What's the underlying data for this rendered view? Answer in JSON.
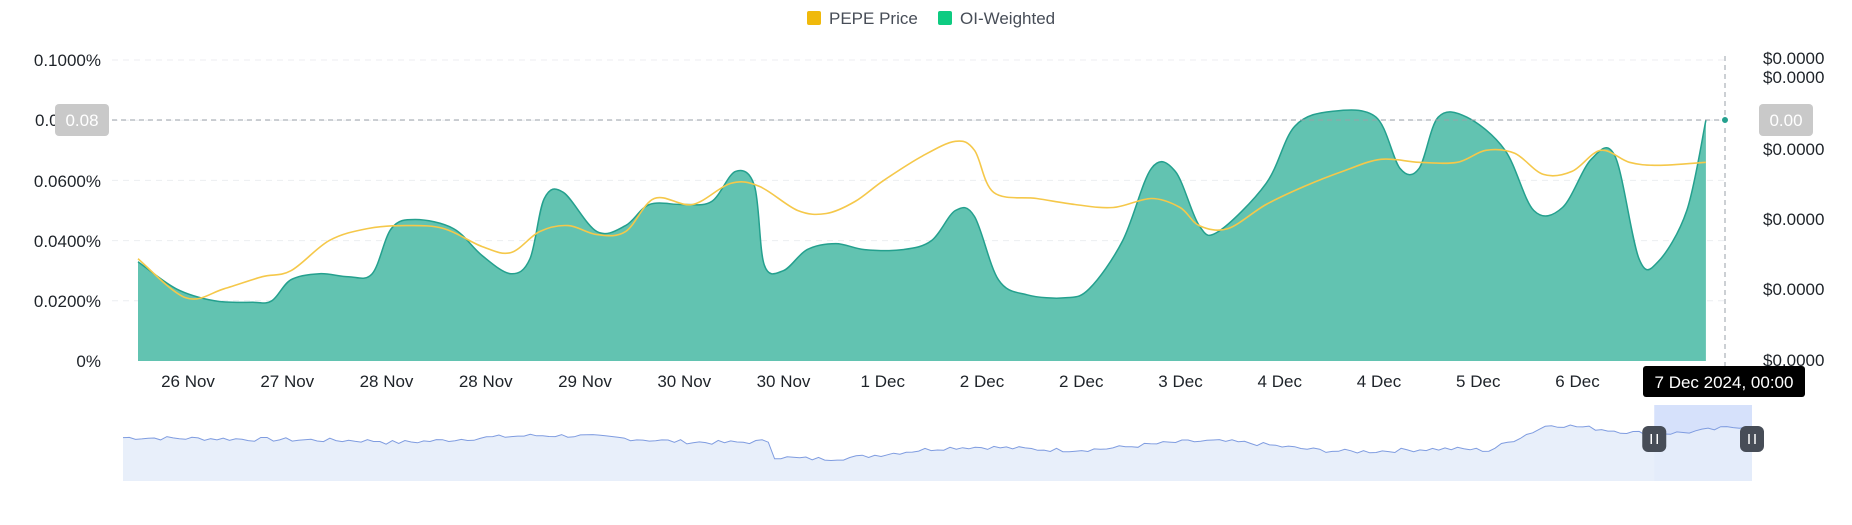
{
  "chart_data": {
    "type": "area",
    "legend": {
      "position": "top-center",
      "items": [
        {
          "label": "PEPE Price",
          "color": "#f0b90b"
        },
        {
          "label": "OI-Weighted",
          "color": "#0ecb81"
        }
      ]
    },
    "x_tick_labels": [
      "26 Nov",
      "27 Nov",
      "28 Nov",
      "28 Nov",
      "29 Nov",
      "30 Nov",
      "30 Nov",
      "1 Dec",
      "2 Dec",
      "2 Dec",
      "3 Dec",
      "4 Dec",
      "4 Dec",
      "5 Dec",
      "6 Dec"
    ],
    "y_left": {
      "ticks": [
        "0.1000%",
        "0.0600%",
        "0.0400%",
        "0.0200%",
        "0%"
      ],
      "range": [
        0,
        0.1
      ]
    },
    "y_right": {
      "ticks": [
        "$0.0000",
        "$0.0000",
        "$0.0000",
        "$0.0000",
        "$0.0000",
        "$0.0000"
      ]
    },
    "grid": true,
    "x_range": [
      0,
      16.6
    ],
    "series": [
      {
        "name": "OI-Weighted",
        "kind": "area",
        "color": "#0ecb81",
        "fill": "#62c3b1",
        "stroke": "#24a08e",
        "points": [
          [
            0,
            0.033
          ],
          [
            0.4,
            0.024
          ],
          [
            0.8,
            0.02
          ],
          [
            1.2,
            0.0195
          ],
          [
            1.4,
            0.02
          ],
          [
            1.6,
            0.027
          ],
          [
            1.9,
            0.029
          ],
          [
            2.2,
            0.028
          ],
          [
            2.45,
            0.029
          ],
          [
            2.65,
            0.044
          ],
          [
            2.9,
            0.047
          ],
          [
            3.3,
            0.044
          ],
          [
            3.6,
            0.035
          ],
          [
            3.9,
            0.029
          ],
          [
            4.1,
            0.034
          ],
          [
            4.25,
            0.054
          ],
          [
            4.45,
            0.056
          ],
          [
            4.8,
            0.043
          ],
          [
            5.1,
            0.045
          ],
          [
            5.35,
            0.052
          ],
          [
            5.7,
            0.052
          ],
          [
            6.0,
            0.053
          ],
          [
            6.25,
            0.063
          ],
          [
            6.45,
            0.058
          ],
          [
            6.55,
            0.032
          ],
          [
            6.75,
            0.03
          ],
          [
            7.0,
            0.037
          ],
          [
            7.3,
            0.039
          ],
          [
            7.6,
            0.037
          ],
          [
            8.0,
            0.037
          ],
          [
            8.3,
            0.04
          ],
          [
            8.55,
            0.05
          ],
          [
            8.75,
            0.048
          ],
          [
            9.0,
            0.027
          ],
          [
            9.3,
            0.022
          ],
          [
            9.7,
            0.021
          ],
          [
            9.95,
            0.024
          ],
          [
            10.3,
            0.04
          ],
          [
            10.6,
            0.064
          ],
          [
            10.85,
            0.063
          ],
          [
            11.1,
            0.045
          ],
          [
            11.3,
            0.043
          ],
          [
            11.8,
            0.059
          ],
          [
            12.1,
            0.078
          ],
          [
            12.5,
            0.083
          ],
          [
            12.95,
            0.081
          ],
          [
            13.2,
            0.064
          ],
          [
            13.4,
            0.064
          ],
          [
            13.6,
            0.081
          ],
          [
            13.9,
            0.081
          ],
          [
            14.3,
            0.07
          ],
          [
            14.6,
            0.05
          ],
          [
            14.9,
            0.051
          ],
          [
            15.2,
            0.067
          ],
          [
            15.45,
            0.068
          ],
          [
            15.7,
            0.034
          ],
          [
            15.9,
            0.033
          ],
          [
            16.2,
            0.05
          ],
          [
            16.4,
            0.08
          ]
        ]
      },
      {
        "name": "PEPE Price",
        "kind": "line",
        "color": "#f5c84a",
        "points": [
          [
            0,
            0.034
          ],
          [
            0.5,
            0.021
          ],
          [
            0.9,
            0.024
          ],
          [
            1.3,
            0.028
          ],
          [
            1.6,
            0.03
          ],
          [
            2.0,
            0.04
          ],
          [
            2.4,
            0.044
          ],
          [
            2.8,
            0.045
          ],
          [
            3.2,
            0.044
          ],
          [
            3.6,
            0.038
          ],
          [
            3.9,
            0.036
          ],
          [
            4.2,
            0.043
          ],
          [
            4.5,
            0.045
          ],
          [
            4.8,
            0.042
          ],
          [
            5.1,
            0.043
          ],
          [
            5.4,
            0.054
          ],
          [
            5.8,
            0.052
          ],
          [
            6.2,
            0.059
          ],
          [
            6.5,
            0.058
          ],
          [
            6.9,
            0.05
          ],
          [
            7.2,
            0.049
          ],
          [
            7.5,
            0.053
          ],
          [
            7.8,
            0.06
          ],
          [
            8.2,
            0.068
          ],
          [
            8.55,
            0.073
          ],
          [
            8.75,
            0.07
          ],
          [
            8.95,
            0.056
          ],
          [
            9.4,
            0.054
          ],
          [
            9.8,
            0.052
          ],
          [
            10.2,
            0.051
          ],
          [
            10.6,
            0.054
          ],
          [
            10.9,
            0.051
          ],
          [
            11.1,
            0.045
          ],
          [
            11.4,
            0.044
          ],
          [
            11.8,
            0.052
          ],
          [
            12.2,
            0.058
          ],
          [
            12.6,
            0.063
          ],
          [
            13.0,
            0.067
          ],
          [
            13.4,
            0.066
          ],
          [
            13.8,
            0.066
          ],
          [
            14.1,
            0.07
          ],
          [
            14.4,
            0.069
          ],
          [
            14.7,
            0.062
          ],
          [
            15.0,
            0.063
          ],
          [
            15.3,
            0.07
          ],
          [
            15.6,
            0.066
          ],
          [
            15.9,
            0.065
          ],
          [
            16.4,
            0.066
          ]
        ]
      }
    ],
    "crosshair": {
      "left_value": "0.08",
      "left_partial_label": "0.0",
      "right_value": "0.00",
      "right_top_price_label": "$0.0000",
      "x_tooltip": "7 Dec 2024, 00:00"
    },
    "navigator": {
      "line_color": "#7f9ce0",
      "fill": "#e6edfa",
      "selection_color": "#d6e1fb",
      "handle_color": "#474d57",
      "selection_range": [
        0.94,
        1.0
      ]
    }
  }
}
